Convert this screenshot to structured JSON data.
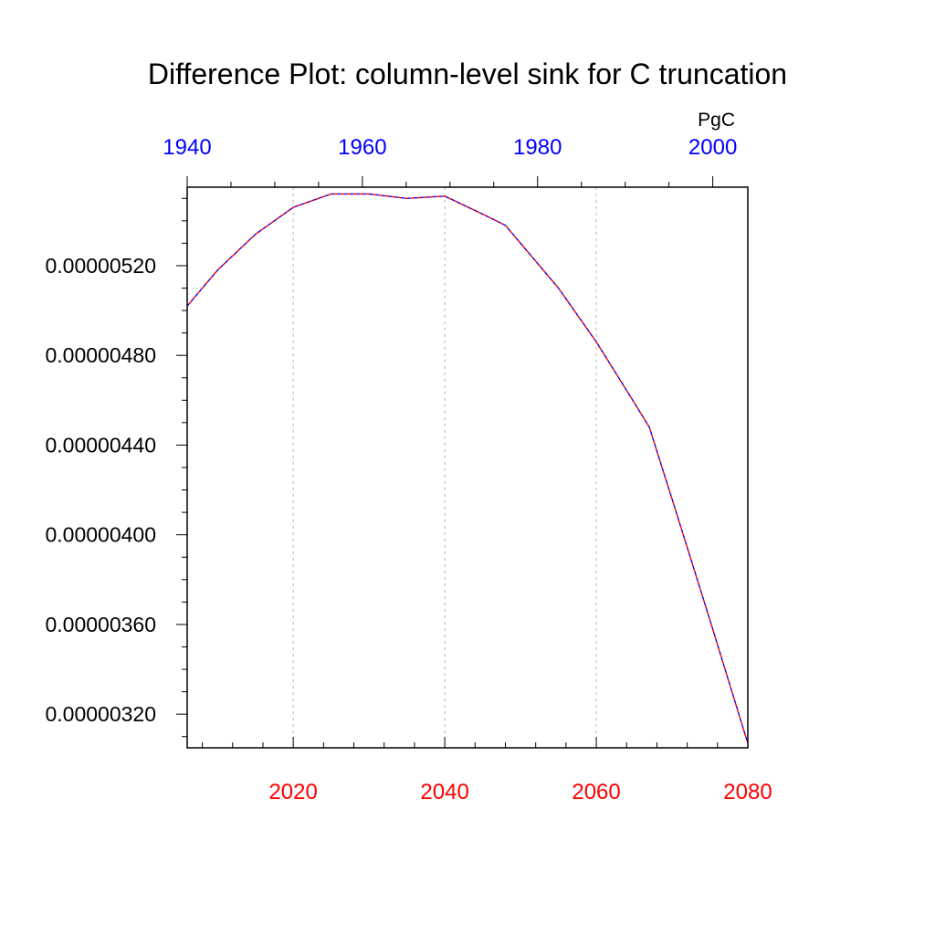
{
  "chart_data": {
    "type": "line",
    "title": "Difference Plot: column-level sink for C truncation",
    "units_label": "PgC",
    "xlabel": "",
    "ylabel": "",
    "x_bottom": {
      "ticks": [
        2020,
        2040,
        2060,
        2080
      ],
      "tick_labels": [
        "2020",
        "2040",
        "2060",
        "2080"
      ],
      "range": [
        2006,
        2080
      ],
      "color": "#ff0000"
    },
    "x_top": {
      "ticks": [
        1940,
        1960,
        1980,
        2000
      ],
      "tick_labels": [
        "1940",
        "1960",
        "1980",
        "2000"
      ],
      "range": [
        1940,
        2004
      ],
      "color": "#0000ff"
    },
    "y": {
      "ticks": [
        3.2e-06,
        3.6e-06,
        4e-06,
        4.4e-06,
        4.8e-06,
        5.2e-06
      ],
      "tick_labels": [
        "0.00000320",
        "0.00000360",
        "0.00000400",
        "0.00000440",
        "0.00000480",
        "0.00000520"
      ],
      "range": [
        3.05e-06,
        5.55e-06
      ]
    },
    "grid": "vertical dashed at bottom-axis major ticks",
    "series": [
      {
        "color": "#0000ff",
        "style": "dashed",
        "x": [
          2006,
          2010,
          2015,
          2020,
          2025,
          2030,
          2035,
          2040,
          2045,
          2048,
          2050,
          2055,
          2060,
          2065,
          2067,
          2070,
          2075,
          2080
        ],
        "y": [
          5.02e-06,
          5.18e-06,
          5.34e-06,
          5.46e-06,
          5.52e-06,
          5.52e-06,
          5.5e-06,
          5.51e-06,
          5.43e-06,
          5.38e-06,
          5.3e-06,
          5.1e-06,
          4.86e-06,
          4.59e-06,
          4.48e-06,
          4.16e-06,
          3.62e-06,
          3.07e-06
        ]
      },
      {
        "color": "#ff0000",
        "style": "dashed",
        "x": [
          2006,
          2010,
          2015,
          2020,
          2025,
          2030,
          2035,
          2040,
          2045,
          2048,
          2050,
          2055,
          2060,
          2065,
          2067,
          2070,
          2075,
          2080
        ],
        "y": [
          5.02e-06,
          5.18e-06,
          5.34e-06,
          5.46e-06,
          5.52e-06,
          5.52e-06,
          5.5e-06,
          5.51e-06,
          5.43e-06,
          5.38e-06,
          5.3e-06,
          5.1e-06,
          4.86e-06,
          4.59e-06,
          4.48e-06,
          4.16e-06,
          3.62e-06,
          3.07e-06
        ]
      }
    ]
  }
}
